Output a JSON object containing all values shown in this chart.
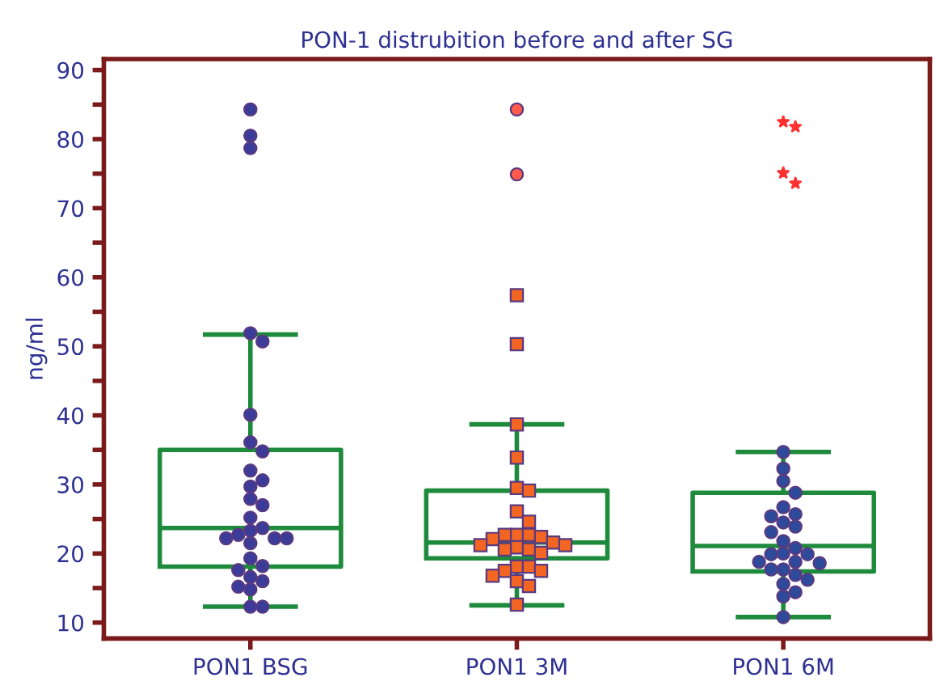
{
  "chart_data": {
    "type": "box",
    "title": "PON-1 distrubition before and after SG",
    "ylabel": "ng/ml",
    "categories": [
      "PON1 BSG",
      "PON1 3M",
      "PON1 6M"
    ],
    "color": "#1e8a3c",
    "boxes": [
      {
        "low": 12.3,
        "q1": 18.1,
        "median": 23.7,
        "q3": 35.0,
        "high": 51.7
      },
      {
        "low": 12.5,
        "q1": 19.3,
        "median": 21.6,
        "q3": 29.1,
        "high": 38.7
      },
      {
        "low": 10.8,
        "q1": 17.4,
        "median": 21.1,
        "q3": 28.8,
        "high": 34.7
      }
    ],
    "series": [
      {
        "type": "scatter",
        "marker": "circle",
        "color": "#3b3b9a",
        "x": [
          "PON1 BSG",
          "PON1 BSG",
          "PON1 BSG",
          "PON1 BSG",
          "PON1 BSG",
          "PON1 BSG",
          "PON1 BSG",
          "PON1 BSG",
          "PON1 BSG",
          "PON1 BSG",
          "PON1 BSG",
          "PON1 BSG",
          "PON1 BSG",
          "PON1 BSG",
          "PON1 BSG",
          "PON1 BSG",
          "PON1 BSG",
          "PON1 BSG",
          "PON1 BSG",
          "PON1 BSG",
          "PON1 BSG",
          "PON1 BSG",
          "PON1 BSG",
          "PON1 BSG",
          "PON1 BSG",
          "PON1 BSG",
          "PON1 BSG",
          "PON1 BSG",
          "PON1 BSG",
          "PON1 BSG"
        ],
        "values": [
          84.3,
          80.5,
          78.7,
          51.9,
          50.7,
          40.1,
          36.1,
          34.8,
          32.0,
          30.6,
          29.7,
          27.9,
          27.0,
          25.2,
          23.7,
          23.3,
          22.7,
          22.2,
          22.2,
          22.2,
          21.5,
          19.3,
          18.2,
          17.6,
          16.6,
          16.0,
          15.2,
          14.8,
          12.3,
          12.3
        ]
      },
      {
        "type": "scatter",
        "marker": "square",
        "color": "#f26522",
        "x": [
          "PON1 3M",
          "PON1 3M",
          "PON1 3M",
          "PON1 3M",
          "PON1 3M",
          "PON1 3M",
          "PON1 3M",
          "PON1 3M",
          "PON1 3M",
          "PON1 3M",
          "PON1 3M",
          "PON1 3M",
          "PON1 3M",
          "PON1 3M",
          "PON1 3M",
          "PON1 3M",
          "PON1 3M",
          "PON1 3M",
          "PON1 3M",
          "PON1 3M",
          "PON1 3M",
          "PON1 3M",
          "PON1 3M",
          "PON1 3M",
          "PON1 3M",
          "PON1 3M",
          "PON1 3M",
          "PON1 3M"
        ],
        "values": [
          57.4,
          50.3,
          38.7,
          33.9,
          29.5,
          29.1,
          26.1,
          24.6,
          22.7,
          22.7,
          22.7,
          22.4,
          22.1,
          21.6,
          21.2,
          21.2,
          20.9,
          20.6,
          20.6,
          20.1,
          18.1,
          18.1,
          17.5,
          17.5,
          16.8,
          16.0,
          15.3,
          12.6
        ]
      },
      {
        "type": "scatter",
        "marker": "circle",
        "color": "#2e4a9b",
        "x": [
          "PON1 6M",
          "PON1 6M",
          "PON1 6M",
          "PON1 6M",
          "PON1 6M",
          "PON1 6M",
          "PON1 6M",
          "PON1 6M",
          "PON1 6M",
          "PON1 6M",
          "PON1 6M",
          "PON1 6M",
          "PON1 6M",
          "PON1 6M",
          "PON1 6M",
          "PON1 6M",
          "PON1 6M",
          "PON1 6M",
          "PON1 6M",
          "PON1 6M",
          "PON1 6M",
          "PON1 6M",
          "PON1 6M",
          "PON1 6M",
          "PON1 6M",
          "PON1 6M"
        ],
        "values": [
          34.7,
          32.3,
          30.5,
          28.8,
          26.7,
          25.7,
          25.4,
          24.5,
          23.9,
          23.1,
          21.8,
          20.8,
          20.0,
          19.9,
          19.9,
          18.8,
          18.8,
          18.6,
          17.7,
          17.7,
          16.9,
          16.2,
          15.6,
          14.4,
          13.8,
          10.8
        ]
      },
      {
        "type": "scatter",
        "marker": "circle",
        "color": "#ff5a4a",
        "x": [
          "PON1 3M",
          "PON1 3M"
        ],
        "values": [
          84.3,
          74.9
        ]
      },
      {
        "type": "scatter",
        "marker": "star",
        "color": "#ff3030",
        "x": [
          "PON1 6M",
          "PON1 6M",
          "PON1 6M",
          "PON1 6M"
        ],
        "values": [
          82.5,
          81.8,
          75.1,
          73.6
        ]
      }
    ],
    "ylim": [
      7.7,
      91.6
    ],
    "yticks": [
      10,
      {
        "value": 15,
        "label": null
      },
      20,
      {
        "value": 25,
        "label": null
      },
      30,
      {
        "value": 35,
        "label": null
      },
      40,
      {
        "value": 45,
        "label": null
      },
      50,
      {
        "value": 55,
        "label": null
      },
      60,
      {
        "value": 65,
        "label": null
      },
      70,
      {
        "value": 75,
        "label": null
      },
      80,
      {
        "value": 85,
        "label": null
      },
      90
    ],
    "grid": false,
    "legend": false
  }
}
